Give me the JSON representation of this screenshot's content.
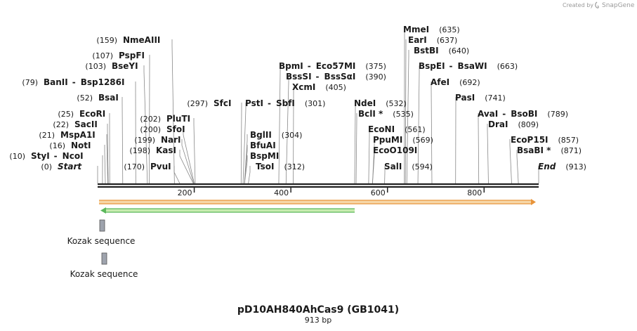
{
  "credit": {
    "prefix": "Created by",
    "brand": "SnapGene"
  },
  "sequence": {
    "name": "pD10AH840AhCas9 (GB1041)",
    "length_label": "913 bp",
    "length": 913
  },
  "ruler": {
    "ticks": [
      "200",
      "400",
      "600",
      "800"
    ]
  },
  "sites": [
    {
      "row": 0,
      "items": [
        {
          "pos": "(0)",
          "name": "Start",
          "italic": true,
          "bp": 0
        }
      ]
    },
    {
      "row": 1,
      "items": [
        {
          "pos": "(10)",
          "name": "StyI",
          "bp": 10
        },
        {
          "name": "NcoI",
          "sep": "-",
          "bp": 10
        }
      ]
    },
    {
      "row": 2,
      "items": [
        {
          "pos": "(16)",
          "name": "NotI",
          "bp": 16
        }
      ]
    },
    {
      "row": 3,
      "items": [
        {
          "pos": "(21)",
          "name": "MspA1I",
          "bp": 21
        }
      ]
    },
    {
      "row": 4,
      "items": [
        {
          "pos": "(22)",
          "name": "SacII",
          "bp": 22
        }
      ]
    },
    {
      "row": 5,
      "items": [
        {
          "pos": "(25)",
          "name": "EcoRI",
          "bp": 25
        }
      ]
    },
    {
      "row": 7,
      "items": [
        {
          "pos": "(52)",
          "name": "BsaI",
          "bp": 52
        }
      ]
    },
    {
      "row": 9,
      "items": [
        {
          "pos": "(79)",
          "name": "BanII",
          "bp": 79
        },
        {
          "name": "Bsp1286I",
          "sep": "-",
          "bp": 79
        }
      ]
    },
    {
      "row": 11,
      "items": [
        {
          "pos": "(103)",
          "name": "BseYI",
          "bp": 103
        }
      ]
    },
    {
      "row": 12,
      "items": [
        {
          "pos": "(107)",
          "name": "PspFI",
          "bp": 107
        }
      ]
    },
    {
      "row": 13,
      "items": [
        {
          "pos": "(159)",
          "name": "NmeAIII",
          "bp": 159
        }
      ]
    }
  ],
  "labels": [
    {
      "id": "start",
      "pos": "(0)",
      "name": "Start",
      "italic": true,
      "bp": 0
    },
    {
      "id": "styi",
      "pos": "(10)",
      "name": "StyI",
      "extra": "NcoI",
      "bp": 10
    },
    {
      "id": "noti",
      "pos": "(16)",
      "name": "NotI",
      "bp": 16
    },
    {
      "id": "mspa1i",
      "pos": "(21)",
      "name": "MspA1I",
      "bp": 21
    },
    {
      "id": "sacii",
      "pos": "(22)",
      "name": "SacII",
      "bp": 22
    },
    {
      "id": "ecori",
      "pos": "(25)",
      "name": "EcoRI",
      "bp": 25
    },
    {
      "id": "bsai",
      "pos": "(52)",
      "name": "BsaI",
      "bp": 52
    },
    {
      "id": "banii",
      "pos": "(79)",
      "name": "BanII",
      "extra": "Bsp1286I",
      "bp": 79
    },
    {
      "id": "bseyi",
      "pos": "(103)",
      "name": "BseYI",
      "bp": 103
    },
    {
      "id": "pspfi",
      "pos": "(107)",
      "name": "PspFI",
      "bp": 107
    },
    {
      "id": "nmeaiii",
      "pos": "(159)",
      "name": "NmeAIII",
      "bp": 159
    },
    {
      "id": "pvui",
      "pos": "(170)",
      "name": "PvuI",
      "bp": 170
    },
    {
      "id": "kasi",
      "pos": "(198)",
      "name": "KasI",
      "bp": 198
    },
    {
      "id": "nari",
      "pos": "(199)",
      "name": "NarI",
      "bp": 199
    },
    {
      "id": "sfoi",
      "pos": "(200)",
      "name": "SfoI",
      "bp": 200
    },
    {
      "id": "pluti",
      "pos": "(202)",
      "name": "PluTI",
      "bp": 202
    },
    {
      "id": "sfci",
      "pos": "(297)",
      "name": "SfcI",
      "bp": 297
    },
    {
      "id": "psti",
      "pos": "(301)",
      "name": "PstI",
      "extra": "SbfI",
      "bp": 301
    },
    {
      "id": "bglii",
      "pos": "(304)",
      "name": "BglII",
      "bp": 304
    },
    {
      "id": "bfuai",
      "name": "BfuAI",
      "bp": 304
    },
    {
      "id": "bspmi",
      "name": "BspMI",
      "bp": 304
    },
    {
      "id": "tsoi",
      "pos": "(312)",
      "name": "TsoI",
      "bp": 312
    },
    {
      "id": "bpmi",
      "pos": "(375)",
      "name": "BpmI",
      "extra": "Eco57MI",
      "bp": 375
    },
    {
      "id": "bsssi",
      "pos": "(390)",
      "name": "BssSI",
      "extra": "BssSαI",
      "bp": 390
    },
    {
      "id": "xcmi",
      "pos": "(405)",
      "name": "XcmI",
      "bp": 405
    },
    {
      "id": "ndei",
      "pos": "(532)",
      "name": "NdeI",
      "bp": 532
    },
    {
      "id": "bcli",
      "pos": "(535)",
      "name": "BclI *",
      "bp": 535
    },
    {
      "id": "econi",
      "pos": "(561)",
      "name": "EcoNI",
      "bp": 561
    },
    {
      "id": "ppumi",
      "pos": "(569)",
      "name": "PpuMI",
      "bp": 569
    },
    {
      "id": "ecoo109i",
      "name": "EcoO109I",
      "bp": 569
    },
    {
      "id": "sali",
      "pos": "(594)",
      "name": "SalI",
      "bp": 594
    },
    {
      "id": "mmei",
      "pos": "(635)",
      "name": "MmeI",
      "bp": 635
    },
    {
      "id": "eari",
      "pos": "(637)",
      "name": "EarI",
      "bp": 637
    },
    {
      "id": "bstbi",
      "pos": "(640)",
      "name": "BstBI",
      "bp": 640
    },
    {
      "id": "bspei",
      "pos": "(663)",
      "name": "BspEI",
      "extra": "BsaWI",
      "bp": 663
    },
    {
      "id": "afei",
      "pos": "(692)",
      "name": "AfeI",
      "bp": 692
    },
    {
      "id": "pasi",
      "pos": "(741)",
      "name": "PasI",
      "bp": 741
    },
    {
      "id": "avai",
      "pos": "(789)",
      "name": "AvaI",
      "extra": "BsoBI",
      "bp": 789
    },
    {
      "id": "drai",
      "pos": "(809)",
      "name": "DraI",
      "bp": 809
    },
    {
      "id": "ecop15i",
      "pos": "(857)",
      "name": "EcoP15I",
      "bp": 857
    },
    {
      "id": "bsabi",
      "pos": "(871)",
      "name": "BsaBI *",
      "bp": 871
    },
    {
      "id": "end",
      "pos": "(913)",
      "name": "End",
      "italic": true,
      "bp": 913
    }
  ],
  "features": [
    {
      "name": "Kozak sequence",
      "label": "Kozak sequence",
      "color": "#9ea3ad"
    },
    {
      "name": "Kozak sequence",
      "label": "Kozak sequence",
      "color": "#9ea3ad"
    }
  ],
  "colors": {
    "orange": "#e8943a",
    "orange_fill": "#f6d7a8",
    "green": "#5cb85c",
    "green_fill": "#c7ecb0",
    "line": "#222222"
  }
}
